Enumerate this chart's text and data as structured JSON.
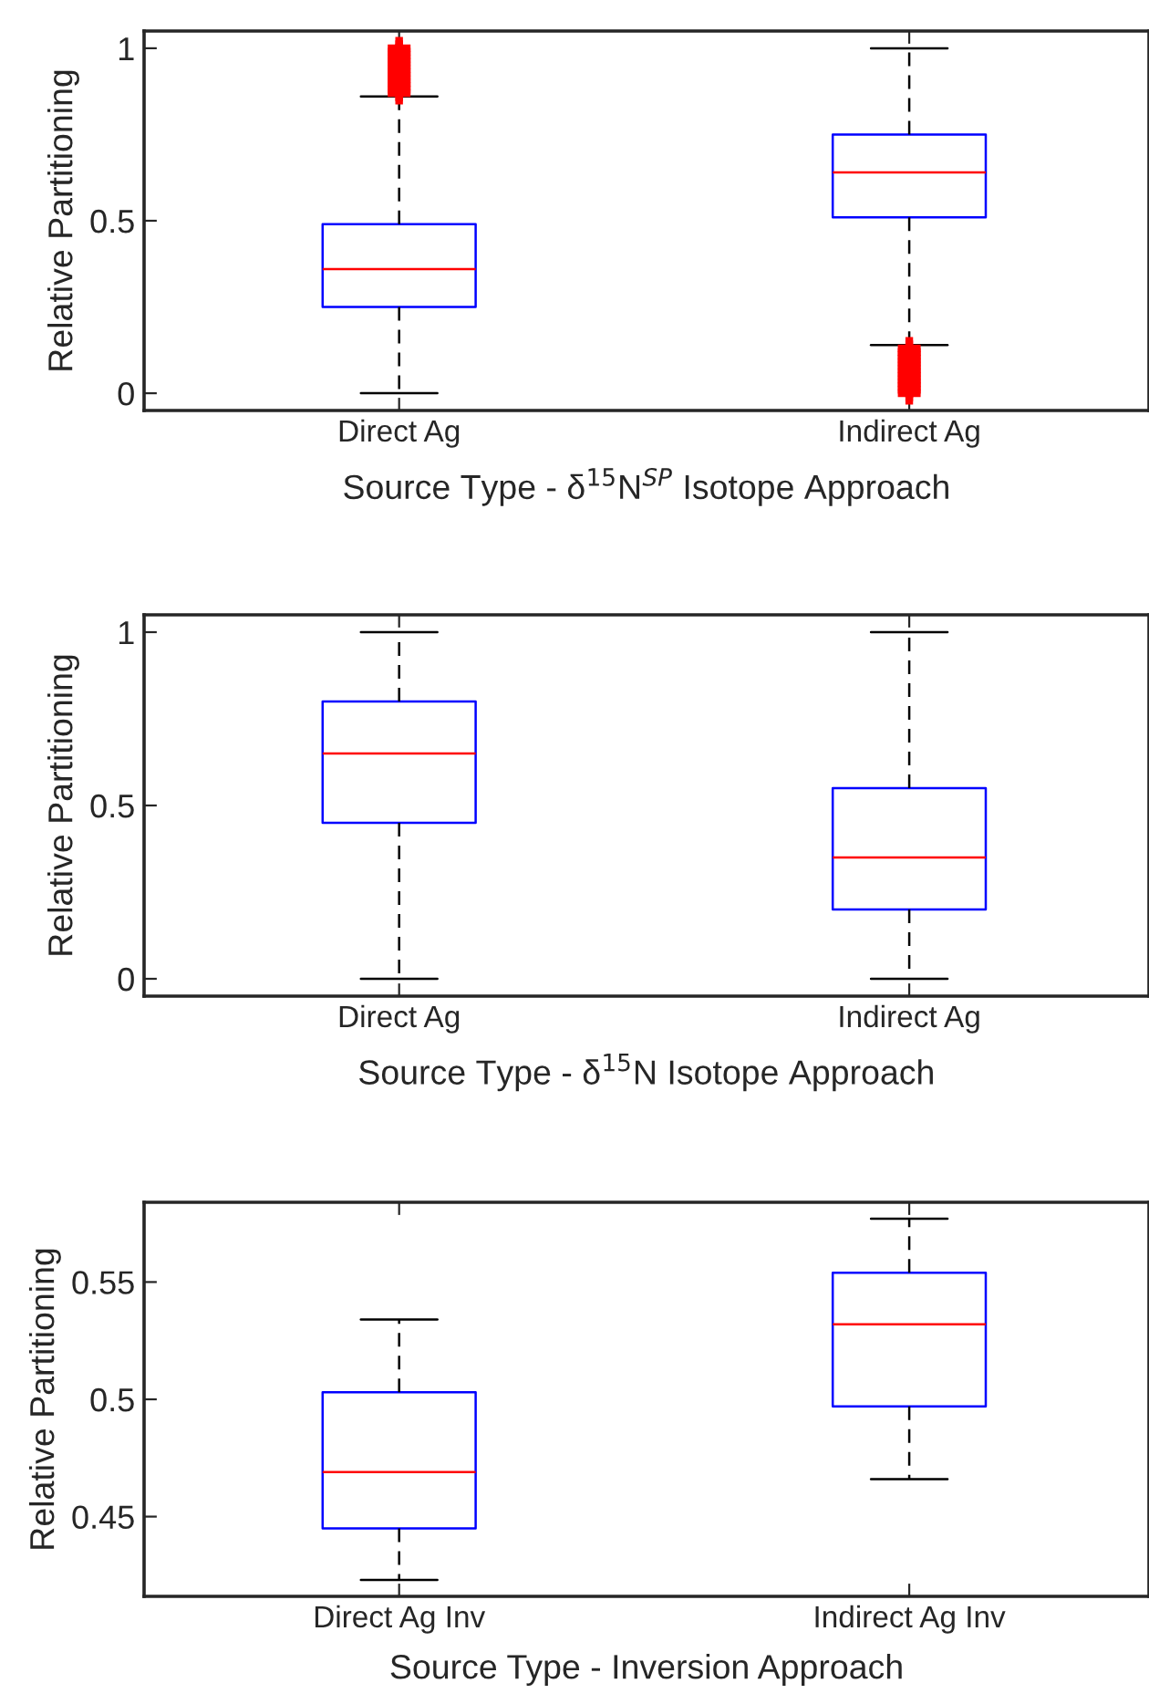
{
  "chart_data": [
    {
      "type": "box",
      "xlabel": "Source Type - δ$^{15}$N$^{SP}$ Isotope Approach",
      "ylabel": "Relative Partitioning",
      "categories": [
        "Direct Ag",
        "Indirect Ag"
      ],
      "ylim": [
        -0.05,
        1.05
      ],
      "yticks": [
        0,
        0.5,
        1
      ],
      "boxes": [
        {
          "low": 0,
          "q1": 0.25,
          "median": 0.36,
          "q3": 0.49,
          "high": 0.86,
          "outliers": [
            0.87,
            0.88,
            0.89,
            0.9,
            0.91,
            0.92,
            0.93,
            0.94,
            0.95,
            0.96,
            0.97,
            0.98,
            0.99,
            1.0
          ]
        },
        {
          "low": 0.14,
          "q1": 0.51,
          "median": 0.64,
          "q3": 0.75,
          "high": 1.0,
          "outliers": [
            0,
            0.01,
            0.02,
            0.03,
            0.04,
            0.05,
            0.06,
            0.07,
            0.08,
            0.09,
            0.1,
            0.11,
            0.12,
            0.13
          ]
        }
      ]
    },
    {
      "type": "box",
      "xlabel": "Source Type - δ$^{15}$N Isotope Approach",
      "ylabel": "Relative Partitioning",
      "categories": [
        "Direct Ag",
        "Indirect Ag"
      ],
      "ylim": [
        -0.05,
        1.05
      ],
      "yticks": [
        0,
        0.5,
        1
      ],
      "boxes": [
        {
          "low": 0,
          "q1": 0.45,
          "median": 0.65,
          "q3": 0.8,
          "high": 1.0
        },
        {
          "low": 0,
          "q1": 0.2,
          "median": 0.35,
          "q3": 0.55,
          "high": 1.0
        }
      ]
    },
    {
      "type": "box",
      "xlabel": "Source Type - Inversion Approach",
      "ylabel": "Relative Partitioning",
      "categories": [
        "Direct Ag Inv",
        "Indirect Ag Inv"
      ],
      "ylim": [
        0.416,
        0.584
      ],
      "yticks": [
        0.45,
        0.5,
        0.55
      ],
      "boxes": [
        {
          "low": 0.423,
          "q1": 0.445,
          "median": 0.469,
          "q3": 0.503,
          "high": 0.534
        },
        {
          "low": 0.466,
          "q1": 0.497,
          "median": 0.532,
          "q3": 0.554,
          "high": 0.577
        }
      ]
    }
  ]
}
